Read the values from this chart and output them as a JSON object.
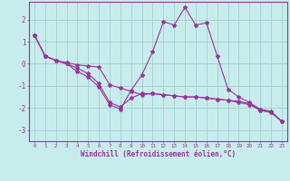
{
  "xlabel": "Windchill (Refroidissement éolien,°C)",
  "bg_color": "#c8ecec",
  "grid_color": "#a0d0d0",
  "line_color": "#993399",
  "spine_color": "#993399",
  "marker": "*",
  "xlim": [
    -0.5,
    23.5
  ],
  "ylim": [
    -3.5,
    2.8
  ],
  "xticks": [
    0,
    1,
    2,
    3,
    4,
    5,
    6,
    7,
    8,
    9,
    10,
    11,
    12,
    13,
    14,
    15,
    16,
    17,
    18,
    19,
    20,
    21,
    22,
    23
  ],
  "yticks": [
    -3,
    -2,
    -1,
    0,
    1,
    2
  ],
  "series1_x": [
    0,
    1,
    2,
    3,
    4,
    5,
    6,
    7,
    8,
    9,
    10,
    11,
    12,
    13,
    14,
    15,
    16,
    17,
    18,
    19,
    20,
    21,
    22,
    23
  ],
  "series1_y": [
    1.3,
    0.35,
    0.15,
    0.05,
    -0.05,
    -0.1,
    -0.15,
    -0.95,
    -1.1,
    -1.25,
    -1.4,
    -1.35,
    -1.4,
    -1.45,
    -1.5,
    -1.5,
    -1.55,
    -1.6,
    -1.65,
    -1.7,
    -1.8,
    -2.1,
    -2.2,
    -2.6
  ],
  "series2_x": [
    0,
    1,
    2,
    3,
    4,
    5,
    6,
    7,
    8,
    9,
    10,
    11,
    12,
    13,
    14,
    15,
    16,
    17,
    18,
    19,
    20,
    21,
    22,
    23
  ],
  "series2_y": [
    1.3,
    0.35,
    0.15,
    0.0,
    -0.35,
    -0.6,
    -1.05,
    -1.85,
    -2.05,
    -1.2,
    -0.5,
    0.55,
    1.9,
    1.75,
    2.55,
    1.75,
    1.85,
    0.35,
    -1.15,
    -1.5,
    -1.75,
    -2.05,
    -2.15,
    -2.6
  ],
  "series3_x": [
    0,
    1,
    2,
    3,
    4,
    5,
    6,
    7,
    8,
    9,
    10,
    11,
    12,
    13,
    14,
    15,
    16,
    17,
    18,
    19,
    20,
    21,
    22,
    23
  ],
  "series3_y": [
    1.3,
    0.35,
    0.15,
    0.0,
    -0.2,
    -0.45,
    -0.9,
    -1.75,
    -1.95,
    -1.55,
    -1.35,
    -1.35,
    -1.4,
    -1.45,
    -1.5,
    -1.5,
    -1.55,
    -1.6,
    -1.65,
    -1.75,
    -1.85,
    -2.1,
    -2.2,
    -2.6
  ]
}
